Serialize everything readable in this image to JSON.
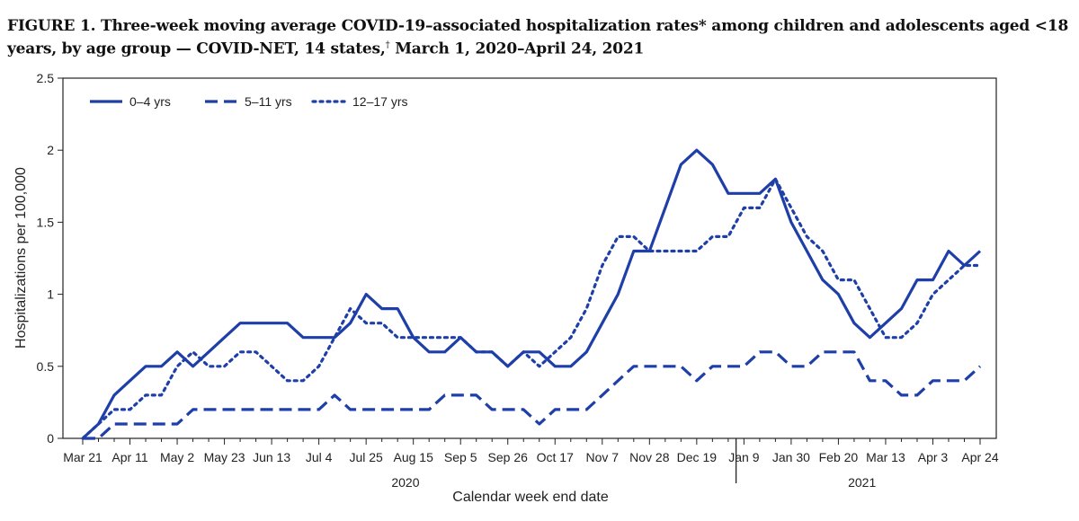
{
  "figure": {
    "label": "FIGURE 1.",
    "title_main": "Three-week moving average COVID-19–associated hospitalization rates* among children and adolescents aged <18 years, by age group — COVID-NET, 14 states,",
    "title_mark": "†",
    "title_dates": "March 1, 2020–April 24, 2021"
  },
  "chart_data": {
    "type": "line",
    "ylabel": "Hospitalizations per 100,000",
    "xlabel": "Calendar week end date",
    "ylim": [
      0,
      2.5
    ],
    "yticks": [
      "0",
      "0.5",
      "1",
      "1.5",
      "2",
      "2.5"
    ],
    "ytick_values": [
      0,
      0.5,
      1,
      1.5,
      2,
      2.5
    ],
    "x_tick_labels": [
      "Mar 21",
      "Apr 11",
      "May 2",
      "May 23",
      "Jun 13",
      "Jul 4",
      "Jul 25",
      "Aug 15",
      "Sep 5",
      "Sep 26",
      "Oct 17",
      "Nov 7",
      "Nov 28",
      "Dec 19",
      "Jan 9",
      "Jan 30",
      "Feb 20",
      "Mar 13",
      "Apr 3",
      "Apr 24"
    ],
    "year_labels": [
      {
        "label": "2020",
        "start_week": 0,
        "end_week": 41
      },
      {
        "label": "2021",
        "start_week": 42,
        "end_week": 57
      }
    ],
    "x_weeks": [
      "Mar 21",
      "Mar 28",
      "Apr 4",
      "Apr 11",
      "Apr 18",
      "Apr 25",
      "May 2",
      "May 9",
      "May 16",
      "May 23",
      "May 30",
      "Jun 6",
      "Jun 13",
      "Jun 20",
      "Jun 27",
      "Jul 4",
      "Jul 11",
      "Jul 18",
      "Jul 25",
      "Aug 1",
      "Aug 8",
      "Aug 15",
      "Aug 22",
      "Aug 29",
      "Sep 5",
      "Sep 12",
      "Sep 19",
      "Sep 26",
      "Oct 3",
      "Oct 10",
      "Oct 17",
      "Oct 24",
      "Oct 31",
      "Nov 7",
      "Nov 14",
      "Nov 21",
      "Nov 28",
      "Dec 5",
      "Dec 12",
      "Dec 19",
      "Dec 26",
      "Jan 2",
      "Jan 9",
      "Jan 16",
      "Jan 23",
      "Jan 30",
      "Feb 6",
      "Feb 13",
      "Feb 20",
      "Feb 27",
      "Mar 6",
      "Mar 13",
      "Mar 20",
      "Mar 27",
      "Apr 3",
      "Apr 10",
      "Apr 17",
      "Apr 24"
    ],
    "series": [
      {
        "name": "0–4 yrs",
        "style": "solid",
        "color": "#1f3fa8",
        "values": [
          0.0,
          0.1,
          0.3,
          0.4,
          0.5,
          0.5,
          0.6,
          0.5,
          0.6,
          0.7,
          0.8,
          0.8,
          0.8,
          0.8,
          0.7,
          0.7,
          0.7,
          0.8,
          1.0,
          0.9,
          0.9,
          0.7,
          0.6,
          0.6,
          0.7,
          0.6,
          0.6,
          0.5,
          0.6,
          0.6,
          0.5,
          0.5,
          0.6,
          0.8,
          1.0,
          1.3,
          1.3,
          1.6,
          1.9,
          2.0,
          1.9,
          1.7,
          1.7,
          1.7,
          1.8,
          1.5,
          1.3,
          1.1,
          1.0,
          0.8,
          0.7,
          0.8,
          0.9,
          1.1,
          1.1,
          1.3,
          1.2,
          1.3
        ]
      },
      {
        "name": "5–11 yrs",
        "style": "dashed",
        "color": "#1f3fa8",
        "values": [
          0.0,
          0.0,
          0.1,
          0.1,
          0.1,
          0.1,
          0.1,
          0.2,
          0.2,
          0.2,
          0.2,
          0.2,
          0.2,
          0.2,
          0.2,
          0.2,
          0.3,
          0.2,
          0.2,
          0.2,
          0.2,
          0.2,
          0.2,
          0.3,
          0.3,
          0.3,
          0.2,
          0.2,
          0.2,
          0.1,
          0.2,
          0.2,
          0.2,
          0.3,
          0.4,
          0.5,
          0.5,
          0.5,
          0.5,
          0.4,
          0.5,
          0.5,
          0.5,
          0.6,
          0.6,
          0.5,
          0.5,
          0.6,
          0.6,
          0.6,
          0.4,
          0.4,
          0.3,
          0.3,
          0.4,
          0.4,
          0.4,
          0.5
        ]
      },
      {
        "name": "12–17 yrs",
        "style": "dotted",
        "color": "#1f3fa8",
        "values": [
          0.0,
          0.1,
          0.2,
          0.2,
          0.3,
          0.3,
          0.5,
          0.6,
          0.5,
          0.5,
          0.6,
          0.6,
          0.5,
          0.4,
          0.4,
          0.5,
          0.7,
          0.9,
          0.8,
          0.8,
          0.7,
          0.7,
          0.7,
          0.7,
          0.7,
          0.6,
          0.6,
          0.5,
          0.6,
          0.5,
          0.6,
          0.7,
          0.9,
          1.2,
          1.4,
          1.4,
          1.3,
          1.3,
          1.3,
          1.3,
          1.4,
          1.4,
          1.6,
          1.6,
          1.8,
          1.6,
          1.4,
          1.3,
          1.1,
          1.1,
          0.9,
          0.7,
          0.7,
          0.8,
          1.0,
          1.1,
          1.2,
          1.2
        ]
      }
    ],
    "legend_position": "top-left",
    "grid": false
  }
}
